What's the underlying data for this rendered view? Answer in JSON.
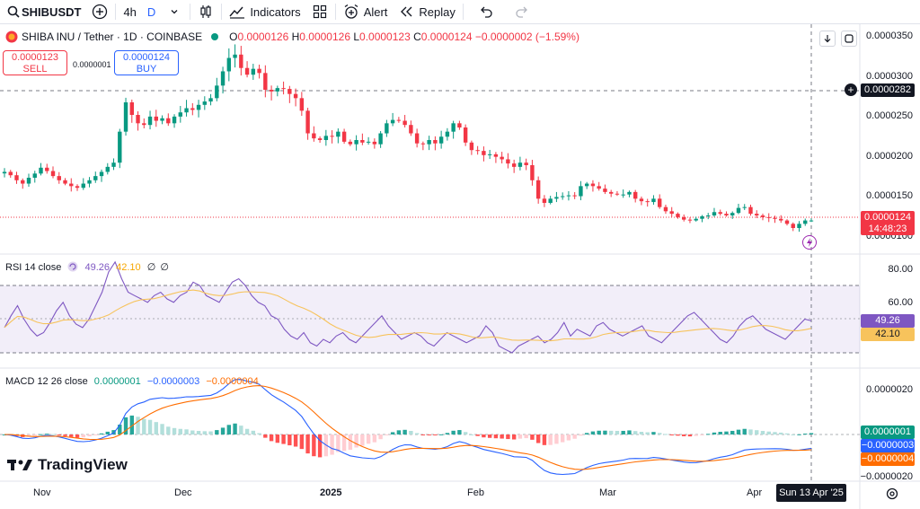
{
  "toolbar": {
    "symbol": "SHIBUSDT",
    "interval": "4h",
    "chart_style_letter": "D",
    "indicators_label": "Indicators",
    "alert_label": "Alert",
    "replay_label": "Replay"
  },
  "legend": {
    "title": "SHIBA INU / Tether · 1D · COINBASE",
    "open": "0.0000126",
    "high": "0.0000126",
    "low": "0.0000123",
    "close": "0.0000124",
    "change": "−0.0000002 (−1.59%)",
    "o_label": "O",
    "h_label": "H",
    "l_label": "L",
    "c_label": "C"
  },
  "trade": {
    "sell_price": "0.0000123",
    "sell_label": "SELL",
    "spread": "0.0000001",
    "buy_price": "0.0000124",
    "buy_label": "BUY"
  },
  "price_axis": {
    "ticks": [
      "0.0000350",
      "0.0000300",
      "0.0000250",
      "0.0000200",
      "0.0000150",
      "0.0000100"
    ],
    "crosshair_label": "0.0000282",
    "last_price": "0.0000124",
    "countdown": "14:48:23"
  },
  "rsi": {
    "label": "RSI 14 close",
    "value": "49.26",
    "ma_value": "42.10",
    "extra1": "∅",
    "extra2": "∅",
    "ticks": [
      "80.00",
      "60.00"
    ],
    "upper": 70,
    "lower": 30
  },
  "macd": {
    "label": "MACD 12 26 close",
    "hist": "0.0000001",
    "macd": "−0.0000003",
    "signal": "−0.0000004",
    "ticks": [
      "0.0000020",
      "−0.0000020"
    ]
  },
  "time_axis": {
    "labels": [
      "Nov",
      "Dec",
      "2025",
      "Feb",
      "Mar",
      "Apr"
    ],
    "cursor_label": "Sun 13 Apr '25"
  },
  "brand": {
    "name": "TradingView"
  },
  "colors": {
    "up": "#089981",
    "down": "#f23645",
    "rsi": "#7e57c2",
    "rsi_ma": "#f7c35c",
    "macd": "#2962ff",
    "signal": "#ff6d00"
  },
  "chart_data": {
    "type": "candlestick",
    "x_start": "2024-10-01",
    "x_end": "2025-04-13",
    "price_range": [
      8.5e-06,
      3.55e-05
    ],
    "close_series": [
      1.82e-05,
      1.78e-05,
      1.72e-05,
      1.68e-05,
      1.75e-05,
      1.8e-05,
      1.87e-05,
      1.83e-05,
      1.77e-05,
      1.72e-05,
      1.68e-05,
      1.65e-05,
      1.63e-05,
      1.68e-05,
      1.72e-05,
      1.77e-05,
      1.82e-05,
      1.88e-05,
      1.93e-05,
      2.3e-05,
      2.65e-05,
      2.5e-05,
      2.4e-05,
      2.38e-05,
      2.48e-05,
      2.43e-05,
      2.46e-05,
      2.4e-05,
      2.48e-05,
      2.53e-05,
      2.58e-05,
      2.56e-05,
      2.62e-05,
      2.66e-05,
      2.7e-05,
      2.85e-05,
      3.02e-05,
      3.18e-05,
      3.22e-05,
      3.06e-05,
      2.98e-05,
      3.05e-05,
      3e-05,
      2.8e-05,
      2.78e-05,
      2.82e-05,
      2.81e-05,
      2.75e-05,
      2.7e-05,
      2.55e-05,
      2.28e-05,
      2.22e-05,
      2.2e-05,
      2.25e-05,
      2.24e-05,
      2.3e-05,
      2.18e-05,
      2.15e-05,
      2.2e-05,
      2.17e-05,
      2.18e-05,
      2.15e-05,
      2.28e-05,
      2.4e-05,
      2.44e-05,
      2.43e-05,
      2.38e-05,
      2.28e-05,
      2.16e-05,
      2.15e-05,
      2.2e-05,
      2.16e-05,
      2.24e-05,
      2.3e-05,
      2.4e-05,
      2.35e-05,
      2.17e-05,
      2.08e-05,
      2.07e-05,
      2.02e-05,
      2.03e-05,
      2e-05,
      1.97e-05,
      1.92e-05,
      1.88e-05,
      1.93e-05,
      1.9e-05,
      1.72e-05,
      1.5e-05,
      1.45e-05,
      1.5e-05,
      1.52e-05,
      1.53e-05,
      1.54e-05,
      1.53e-05,
      1.65e-05,
      1.68e-05,
      1.65e-05,
      1.62e-05,
      1.58e-05,
      1.56e-05,
      1.55e-05,
      1.55e-05,
      1.58e-05,
      1.5e-05,
      1.47e-05,
      1.46e-05,
      1.5e-05,
      1.4e-05,
      1.35e-05,
      1.32e-05,
      1.28e-05,
      1.25e-05,
      1.24e-05,
      1.26e-05,
      1.29e-05,
      1.3e-05,
      1.34e-05,
      1.32e-05,
      1.3e-05,
      1.33e-05,
      1.39e-05,
      1.4e-05,
      1.32e-05,
      1.3e-05,
      1.28e-05,
      1.27e-05,
      1.26e-05,
      1.24e-05,
      1.2e-05,
      1.15e-05,
      1.2e-05,
      1.24e-05,
      1.24e-05
    ],
    "rsi_series": [
      45,
      52,
      58,
      50,
      44,
      40,
      42,
      48,
      55,
      60,
      52,
      47,
      45,
      50,
      58,
      66,
      78,
      84,
      74,
      66,
      64,
      62,
      60,
      64,
      66,
      62,
      60,
      64,
      66,
      72,
      70,
      64,
      62,
      60,
      66,
      72,
      74,
      70,
      64,
      60,
      58,
      52,
      50,
      44,
      40,
      38,
      42,
      36,
      34,
      38,
      36,
      40,
      42,
      38,
      36,
      40,
      44,
      48,
      52,
      46,
      42,
      38,
      40,
      42,
      40,
      36,
      34,
      38,
      42,
      40,
      38,
      36,
      38,
      40,
      46,
      42,
      34,
      32,
      30,
      34,
      36,
      38,
      40,
      36,
      38,
      42,
      48,
      40,
      44,
      42,
      40,
      46,
      48,
      44,
      42,
      40,
      42,
      44,
      46,
      40,
      38,
      36,
      40,
      44,
      48,
      52,
      54,
      50,
      46,
      42,
      38,
      36,
      40,
      46,
      50,
      52,
      48,
      44,
      42,
      40,
      38,
      42,
      46,
      50,
      49
    ]
  }
}
